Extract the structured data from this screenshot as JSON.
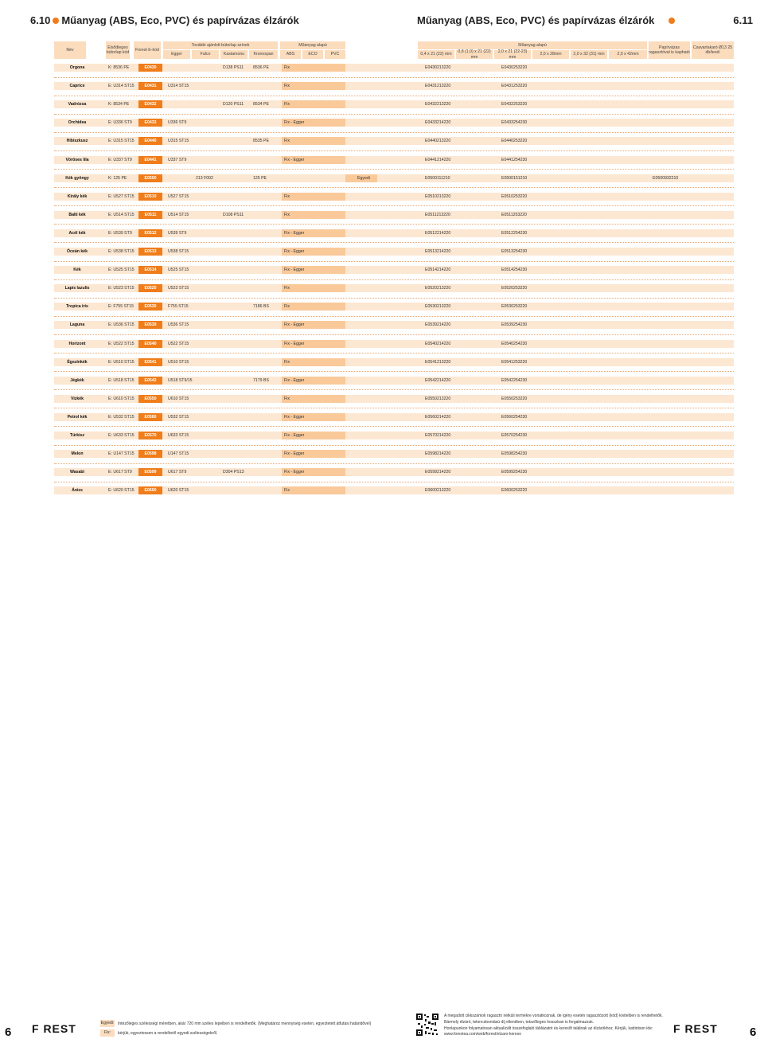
{
  "header": {
    "left_number": "6.10",
    "left_title": "Műanyag (ABS, Eco, PVC) és papírvázas élzárók",
    "right_title": "Műanyag (ABS, Eco, PVC) és papírvázas élzárók",
    "right_number": "6.11"
  },
  "table_headers": {
    "nev": "Név",
    "elsodleges": "Elsődleges bútorlap kód",
    "forest_kod": "Forest E-kód",
    "tovabbi": "További ajánlott bútorlap színek",
    "egger": "Egger",
    "falco": "Falco",
    "kastamonu": "Kastamonu",
    "kronospan": "Kronospan",
    "muanyag_alapu": "Műanyag alapú",
    "abs": "ABS",
    "eco": "ECO",
    "pvc": "PVC",
    "muanyag_alapu_right": "Műanyag alapú",
    "s1": "0,4 x 21 (22) mm",
    "s2": "0,8 (1,0) x 21 (22) mm",
    "s3": "2,0 x 21 (22-23) mm",
    "s4": "2,0 x 28mm",
    "s5": "2,0 x 32 (31) mm",
    "s6": "2,0 x 42mm",
    "papirvazas": "Papírvázas ragasztóval is kapható",
    "csavar": "Csavartakaró Ø13 25 db/levél"
  },
  "rows": [
    {
      "name": "Orgona",
      "prim": "K: 8536 PE",
      "code": "E0430",
      "egger": "",
      "falco": "",
      "kasta": "D138 PS11",
      "krono": "8536 PE",
      "mat": "Fix",
      "s1": "",
      "s2": "",
      "s3": "E0430213220",
      "s4": "",
      "s5": "E0430253220",
      "s6": "",
      "csavar": ""
    },
    {
      "name": "Caprice",
      "prim": "E: U314 ST15",
      "code": "E0431",
      "egger": "U314 ST15",
      "falco": "",
      "kasta": "",
      "krono": "",
      "mat": "Fix",
      "s1": "",
      "s2": "",
      "s3": "E0431213220",
      "s4": "",
      "s5": "E0431253220",
      "s6": "",
      "csavar": ""
    },
    {
      "name": "Vadrózsa",
      "prim": "K: 8534 PE",
      "code": "E0432",
      "egger": "",
      "falco": "",
      "kasta": "D120 PS11",
      "krono": "8534 PE",
      "mat": "Fix",
      "s1": "",
      "s2": "",
      "s3": "E0432213220",
      "s4": "",
      "s5": "E0432253220",
      "s6": "",
      "csavar": ""
    },
    {
      "name": "Orchidea",
      "prim": "E: U336 ST9",
      "code": "E0433",
      "egger": "U336 ST9",
      "falco": "",
      "kasta": "",
      "krono": "",
      "mat": "Fix - Egger",
      "s1": "",
      "s2": "",
      "s3": "E0433214220",
      "s4": "",
      "s5": "E0433254230",
      "s6": "",
      "csavar": ""
    },
    {
      "name": "Hibiszkusz",
      "prim": "E: U315 ST15",
      "code": "E0440",
      "egger": "U315 ST15",
      "falco": "",
      "kasta": "",
      "krono": "8535 PE",
      "mat": "Fix",
      "s1": "",
      "s2": "",
      "s3": "E0440213220",
      "s4": "",
      "s5": "E0440253220",
      "s6": "",
      "csavar": ""
    },
    {
      "name": "Vöröses lila",
      "prim": "E: U337 ST9",
      "code": "E0441",
      "egger": "U337 ST9",
      "falco": "",
      "kasta": "",
      "krono": "",
      "mat": "Fix - Egger",
      "s1": "",
      "s2": "",
      "s3": "E0441214220",
      "s4": "",
      "s5": "E0441254230",
      "s6": "",
      "csavar": ""
    },
    {
      "name": "Kék gyöngy",
      "prim": "K: 125 PE",
      "code": "E0500",
      "egger": "",
      "falco": "213 F002",
      "kasta": "",
      "krono": "125 PE",
      "mat": "Egyedi",
      "s1": "",
      "s2": "",
      "s3": "E0500111210",
      "s4": "",
      "s5": "E0500151210",
      "s6": "",
      "csavar": "E0500932210"
    },
    {
      "name": "Király kék",
      "prim": "E: U527 ST15",
      "code": "E0510",
      "egger": "U527 ST15",
      "falco": "",
      "kasta": "",
      "krono": "",
      "mat": "Fix",
      "s1": "",
      "s2": "",
      "s3": "E0510213220",
      "s4": "",
      "s5": "E0510253220",
      "s6": "",
      "csavar": ""
    },
    {
      "name": "Balti kék",
      "prim": "E: U514 ST15",
      "code": "E0511",
      "egger": "U514 ST15",
      "falco": "",
      "kasta": "D108 PS11",
      "krono": "",
      "mat": "Fix",
      "s1": "",
      "s2": "",
      "s3": "E0511213220",
      "s4": "",
      "s5": "E0511253220",
      "s6": "",
      "csavar": ""
    },
    {
      "name": "Acél kék",
      "prim": "E: U539 ST9",
      "code": "E0512",
      "egger": "U539 ST9",
      "falco": "",
      "kasta": "",
      "krono": "",
      "mat": "Fix - Egger",
      "s1": "",
      "s2": "",
      "s3": "E0512214220",
      "s4": "",
      "s5": "E0512254230",
      "s6": "",
      "csavar": ""
    },
    {
      "name": "Óceán kék",
      "prim": "E: U538 ST15",
      "code": "E0513",
      "egger": "U538 ST15",
      "falco": "",
      "kasta": "",
      "krono": "",
      "mat": "Fix - Egger",
      "s1": "",
      "s2": "",
      "s3": "E0513214220",
      "s4": "",
      "s5": "E0513254230",
      "s6": "",
      "csavar": ""
    },
    {
      "name": "Kék",
      "prim": "E: U525 ST15",
      "code": "E0514",
      "egger": "U525 ST15",
      "falco": "",
      "kasta": "",
      "krono": "",
      "mat": "Fix - Egger",
      "s1": "",
      "s2": "",
      "s3": "E0514214220",
      "s4": "",
      "s5": "E0514254230",
      "s6": "",
      "csavar": ""
    },
    {
      "name": "Lapis lazulis",
      "prim": "E: U523 ST15",
      "code": "E0520",
      "egger": "U523 ST15",
      "falco": "",
      "kasta": "",
      "krono": "",
      "mat": "Fix",
      "s1": "",
      "s2": "",
      "s3": "E0520213220",
      "s4": "",
      "s5": "E0520253220",
      "s6": "",
      "csavar": ""
    },
    {
      "name": "Tropica iris",
      "prim": "E: F755 ST15",
      "code": "E0530",
      "egger": "F755 ST15",
      "falco": "",
      "kasta": "",
      "krono": "7186 BS",
      "mat": "Fix",
      "s1": "",
      "s2": "",
      "s3": "E0530213220",
      "s4": "",
      "s5": "E0530253220",
      "s6": "",
      "csavar": ""
    },
    {
      "name": "Laguna",
      "prim": "E: U536 ST15",
      "code": "E0539",
      "egger": "U536 ST15",
      "falco": "",
      "kasta": "",
      "krono": "",
      "mat": "Fix - Egger",
      "s1": "",
      "s2": "",
      "s3": "E0539214220",
      "s4": "",
      "s5": "E0539254230",
      "s6": "",
      "csavar": ""
    },
    {
      "name": "Horizont",
      "prim": "E: U522 ST15",
      "code": "E0540",
      "egger": "U522 ST15",
      "falco": "",
      "kasta": "",
      "krono": "",
      "mat": "Fix - Egger",
      "s1": "",
      "s2": "",
      "s3": "E0540214220",
      "s4": "",
      "s5": "E0540254230",
      "s6": "",
      "csavar": ""
    },
    {
      "name": "Égszínkék",
      "prim": "E: U510 ST15",
      "code": "E0541",
      "egger": "U510 ST15",
      "falco": "",
      "kasta": "",
      "krono": "",
      "mat": "Fix",
      "s1": "",
      "s2": "",
      "s3": "E0541213220",
      "s4": "",
      "s5": "E0541253220",
      "s6": "",
      "csavar": ""
    },
    {
      "name": "Jégkék",
      "prim": "E: U518 ST15",
      "code": "E0542",
      "egger": "U518 ST9/15",
      "falco": "",
      "kasta": "",
      "krono": "7179 BS",
      "mat": "Fix - Egger",
      "s1": "",
      "s2": "",
      "s3": "E0542214220",
      "s4": "",
      "s5": "E0542254230",
      "s6": "",
      "csavar": ""
    },
    {
      "name": "Vizkék",
      "prim": "E: U610 ST15",
      "code": "E0550",
      "egger": "U610 ST15",
      "falco": "",
      "kasta": "",
      "krono": "",
      "mat": "Fix",
      "s1": "",
      "s2": "",
      "s3": "E0550213220",
      "s4": "",
      "s5": "E0550253220",
      "s6": "",
      "csavar": ""
    },
    {
      "name": "Petrol kék",
      "prim": "E: U532 ST15",
      "code": "E0560",
      "egger": "U532 ST15",
      "falco": "",
      "kasta": "",
      "krono": "",
      "mat": "Fix - Egger",
      "s1": "",
      "s2": "",
      "s3": "E0560214220",
      "s4": "",
      "s5": "E0560254230",
      "s6": "",
      "csavar": ""
    },
    {
      "name": "Türkisz",
      "prim": "E: U633 ST15",
      "code": "E0570",
      "egger": "U633 ST15",
      "falco": "",
      "kasta": "",
      "krono": "",
      "mat": "Fix - Egger",
      "s1": "",
      "s2": "",
      "s3": "E0570214220",
      "s4": "",
      "s5": "E0570254230",
      "s6": "",
      "csavar": ""
    },
    {
      "name": "Melon",
      "prim": "E: U147 ST15",
      "code": "E0598",
      "egger": "U147 ST15",
      "falco": "",
      "kasta": "",
      "krono": "",
      "mat": "Fix - Egger",
      "s1": "",
      "s2": "",
      "s3": "E0598214220",
      "s4": "",
      "s5": "E0598254230",
      "s6": "",
      "csavar": ""
    },
    {
      "name": "Wasabi",
      "prim": "E: U617 ST9",
      "code": "E0599",
      "egger": "U617 ST9",
      "falco": "",
      "kasta": "D304 PS13",
      "krono": "",
      "mat": "Fix - Egger",
      "s1": "",
      "s2": "",
      "s3": "E0599214220",
      "s4": "",
      "s5": "E0599254230",
      "s6": "",
      "csavar": ""
    },
    {
      "name": "Ánizs",
      "prim": "E: U620 ST15",
      "code": "E0600",
      "egger": "U620 ST15",
      "falco": "",
      "kasta": "",
      "krono": "",
      "mat": "Fix",
      "s1": "",
      "s2": "",
      "s3": "E0600213220",
      "s4": "",
      "s5": "E0600253220",
      "s6": "",
      "csavar": ""
    }
  ],
  "footer": {
    "page_left": "6",
    "page_right": "6",
    "logo_left": "F  REST",
    "logo_right": "F  REST",
    "legend_egyedi": "Egyedi:",
    "legend_egyedi_text": "Intézőleges szélességi méretben, akár 720 mm széles lepelben is rendelhetők. (Meghatároz mennyiség esetén, egyeztetett átfutási határidővel)",
    "legend_fix": "Fix:",
    "legend_fix_text": "kérjük, egyeztessen a rendelhető egyedi szélességekről.",
    "note1": "A megadott cikkszámok ragasztó nélküli termékre vonatkoznak, de igény esetén ragasztózott (kód) kivitelben is rendelhetők.",
    "note2": "Bármely élzáró, tekercsbontású díj ellenében, tetszőleges hosszban is forgalmazzuk.",
    "note3": "Honlapunkon folyamatosan aktualizált összefoglaló táblázatot és keresőt találnak az élzárókhoz. Kérjük, kattintson ide:",
    "note4": "www.forestea.com/web/forest/elzaro-kereso"
  },
  "colors": {
    "accent": "#f07d1a",
    "header_bg": "#fbdcbd",
    "row_bg": "#fce7d2"
  }
}
